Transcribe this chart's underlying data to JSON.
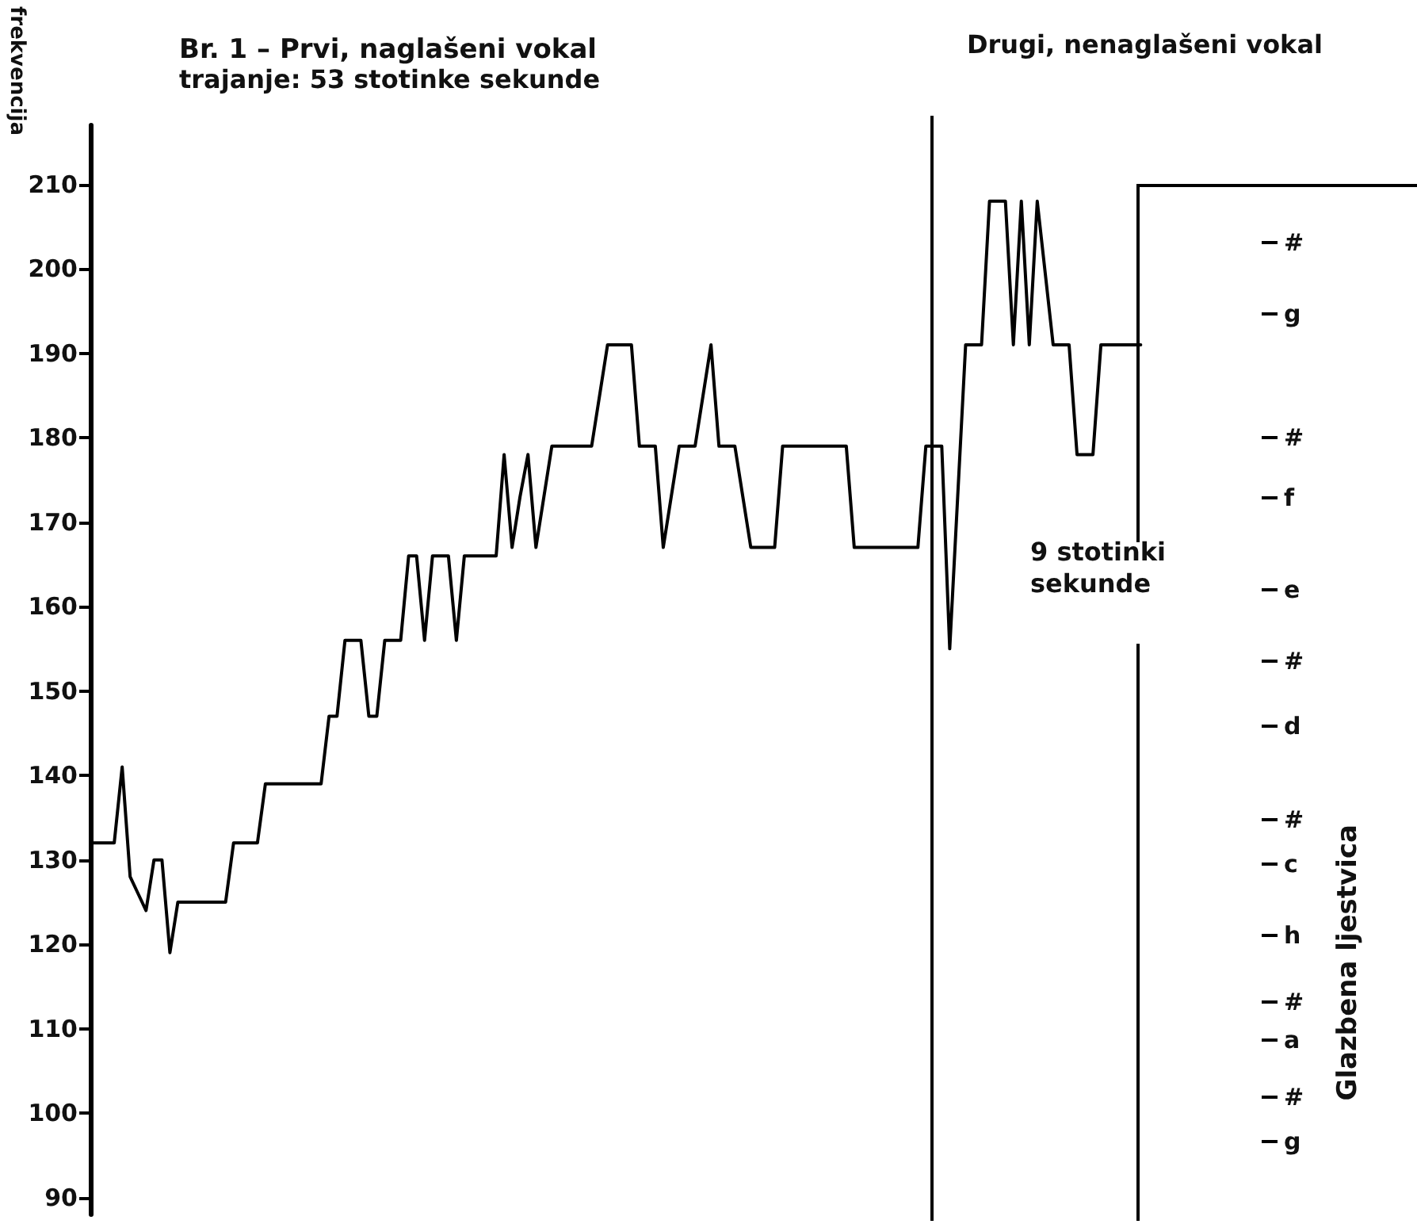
{
  "chart_data": {
    "type": "line",
    "title": "Br. 1 – Prvi, naglašeni vokal",
    "subtitle": "trajanje: 53 stotinke sekunde",
    "ylabel": "frekvencija",
    "y2label": "Glazbena ljestvica",
    "annotations": [
      "Drugi, nenaglašeni vokal",
      "9 stotinki\nsekunde",
      "#",
      "g",
      "#",
      "f",
      "e",
      "#",
      "d",
      "#",
      "c",
      "h",
      "#",
      "a",
      "#",
      "g"
    ],
    "categories": [
      null,
      null,
      null,
      null,
      null,
      null,
      null,
      null,
      null,
      null,
      null,
      null,
      null,
      null,
      null,
      null,
      null,
      null,
      null,
      null,
      null,
      null,
      null,
      null,
      null,
      null,
      null,
      null,
      null,
      null,
      null,
      null,
      null,
      null,
      null,
      null,
      null,
      null,
      null,
      null,
      null,
      null,
      null,
      null,
      null,
      null,
      null,
      null,
      null,
      null,
      null,
      null,
      null,
      null,
      null,
      null,
      null,
      null,
      null,
      null,
      null,
      null,
      null,
      null,
      null,
      null,
      null,
      null,
      null,
      null,
      null,
      null,
      null,
      null,
      null,
      null,
      null,
      null,
      null,
      null,
      null,
      null,
      null,
      null,
      null,
      null,
      null,
      null,
      null,
      null,
      null,
      null,
      null,
      null,
      null,
      null,
      null,
      null,
      null,
      null,
      null,
      null,
      null,
      null,
      null,
      null,
      null,
      null,
      null,
      null,
      null,
      null,
      null,
      null,
      null,
      null,
      null,
      null,
      null,
      null,
      null,
      null,
      null,
      null,
      null,
      null,
      null,
      null,
      null,
      null,
      null,
      null,
      null,
      null,
      null,
      null,
      null,
      null,
      null,
      null,
      null,
      null,
      null,
      null,
      null,
      null,
      null,
      null,
      null
    ],
    "series": [
      {
        "color": "#000000",
        "values": [
          132,
          132,
          132,
          132,
          141,
          128,
          126,
          124,
          130,
          130,
          119,
          125,
          125,
          125,
          125,
          125,
          125,
          125,
          132,
          132,
          132,
          132,
          139,
          139,
          139,
          139,
          139,
          139,
          139,
          139,
          147,
          147,
          156,
          156,
          156,
          147,
          147,
          156,
          156,
          156,
          166,
          166,
          156,
          166,
          166,
          166,
          156,
          166,
          166,
          166,
          166,
          166,
          178,
          167,
          173,
          178,
          167,
          173,
          179,
          179,
          179,
          179,
          179,
          179,
          185,
          191,
          191,
          191,
          191,
          179,
          179,
          179,
          167,
          173,
          179,
          179,
          179,
          185,
          191,
          179,
          179,
          179,
          173,
          167,
          167,
          167,
          167,
          179,
          179,
          179,
          179,
          179,
          179,
          179,
          179,
          179,
          167,
          167,
          167,
          167,
          167,
          167,
          167,
          167,
          167,
          179,
          179,
          179,
          155,
          173,
          191,
          191,
          191,
          208,
          208,
          208,
          191,
          208,
          191,
          208,
          199.5,
          191,
          191,
          191,
          178,
          178,
          178,
          191,
          191,
          191,
          191,
          191,
          191,
          null,
          null,
          null,
          null,
          null,
          null,
          null,
          null,
          null,
          null,
          null,
          null,
          null,
          null,
          null,
          null
        ]
      }
    ],
    "ylim": [
      88,
      217
    ],
    "yticks": [
      90,
      100,
      110,
      120,
      130,
      140,
      150,
      160,
      170,
      180,
      190,
      200,
      210
    ],
    "tick_labels": "y",
    "line_style": "solid"
  }
}
